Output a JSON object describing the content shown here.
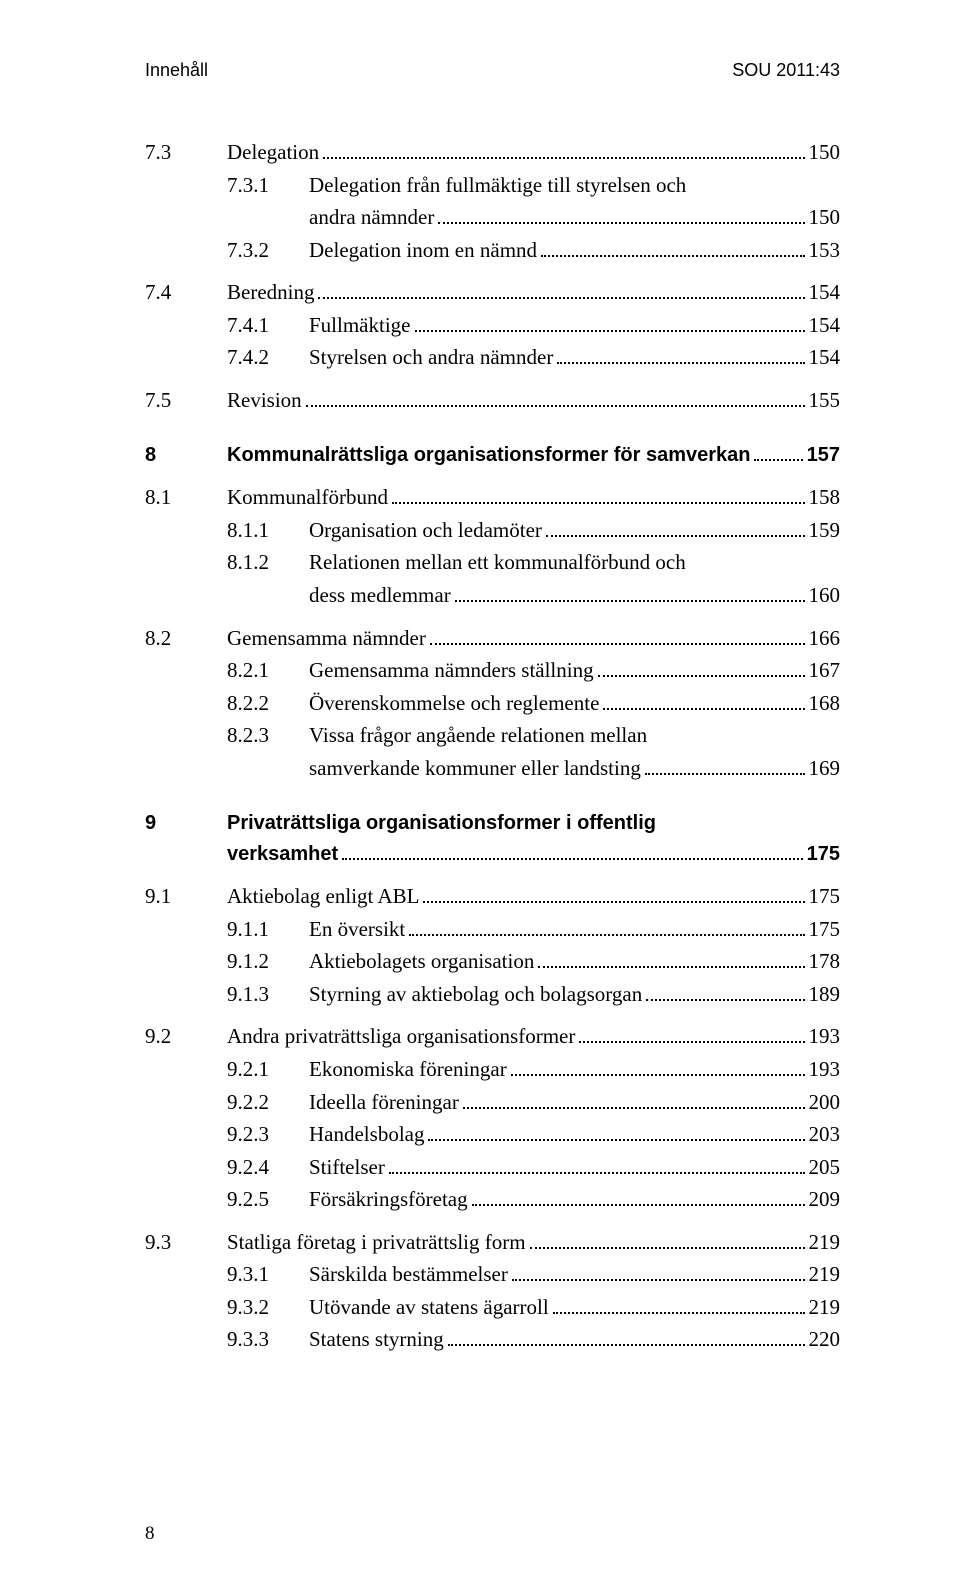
{
  "header": {
    "left": "Innehåll",
    "right": "SOU 2011:43"
  },
  "entries": {
    "e7_3": {
      "num": "7.3",
      "title": "Delegation",
      "page": "150"
    },
    "e7_3_1": {
      "num": "7.3.1",
      "title": "Delegation från fullmäktige till styrelsen och",
      "cont": "andra nämnder",
      "page": "150"
    },
    "e7_3_2": {
      "num": "7.3.2",
      "title": "Delegation inom en nämnd",
      "page": "153"
    },
    "e7_4": {
      "num": "7.4",
      "title": "Beredning",
      "page": "154"
    },
    "e7_4_1": {
      "num": "7.4.1",
      "title": "Fullmäktige",
      "page": "154"
    },
    "e7_4_2": {
      "num": "7.4.2",
      "title": "Styrelsen och andra nämnder",
      "page": "154"
    },
    "e7_5": {
      "num": "7.5",
      "title": "Revision",
      "page": "155"
    },
    "e8": {
      "num": "8",
      "title": "Kommunalrättsliga organisationsformer för samverkan",
      "page": "157"
    },
    "e8_1": {
      "num": "8.1",
      "title": "Kommunalförbund",
      "page": "158"
    },
    "e8_1_1": {
      "num": "8.1.1",
      "title": "Organisation och ledamöter",
      "page": "159"
    },
    "e8_1_2": {
      "num": "8.1.2",
      "title": "Relationen mellan ett kommunalförbund och",
      "cont": "dess medlemmar",
      "page": "160"
    },
    "e8_2": {
      "num": "8.2",
      "title": "Gemensamma nämnder",
      "page": "166"
    },
    "e8_2_1": {
      "num": "8.2.1",
      "title": "Gemensamma nämnders ställning",
      "page": "167"
    },
    "e8_2_2": {
      "num": "8.2.2",
      "title": "Överenskommelse och reglemente",
      "page": "168"
    },
    "e8_2_3": {
      "num": "8.2.3",
      "title": "Vissa frågor angående relationen mellan",
      "cont": "samverkande kommuner eller landsting",
      "page": "169"
    },
    "e9": {
      "num": "9",
      "title": "Privaträttsliga organisationsformer i offentlig",
      "cont": "verksamhet",
      "page": "175"
    },
    "e9_1": {
      "num": "9.1",
      "title": "Aktiebolag enligt ABL",
      "page": "175"
    },
    "e9_1_1": {
      "num": "9.1.1",
      "title": "En översikt",
      "page": "175"
    },
    "e9_1_2": {
      "num": "9.1.2",
      "title": "Aktiebolagets organisation",
      "page": "178"
    },
    "e9_1_3": {
      "num": "9.1.3",
      "title": "Styrning av aktiebolag och bolagsorgan",
      "page": "189"
    },
    "e9_2": {
      "num": "9.2",
      "title": "Andra privaträttsliga organisationsformer",
      "page": "193"
    },
    "e9_2_1": {
      "num": "9.2.1",
      "title": "Ekonomiska föreningar",
      "page": "193"
    },
    "e9_2_2": {
      "num": "9.2.2",
      "title": "Ideella föreningar",
      "page": "200"
    },
    "e9_2_3": {
      "num": "9.2.3",
      "title": "Handelsbolag",
      "page": "203"
    },
    "e9_2_4": {
      "num": "9.2.4",
      "title": "Stiftelser",
      "page": "205"
    },
    "e9_2_5": {
      "num": "9.2.5",
      "title": "Försäkringsföretag",
      "page": "209"
    },
    "e9_3": {
      "num": "9.3",
      "title": "Statliga företag i privaträttslig form",
      "page": "219"
    },
    "e9_3_1": {
      "num": "9.3.1",
      "title": "Särskilda bestämmelser",
      "page": "219"
    },
    "e9_3_2": {
      "num": "9.3.2",
      "title": "Utövande av statens ägarroll",
      "page": "219"
    },
    "e9_3_3": {
      "num": "9.3.3",
      "title": "Statens styrning",
      "page": "220"
    }
  },
  "footer": {
    "page_number": "8"
  }
}
